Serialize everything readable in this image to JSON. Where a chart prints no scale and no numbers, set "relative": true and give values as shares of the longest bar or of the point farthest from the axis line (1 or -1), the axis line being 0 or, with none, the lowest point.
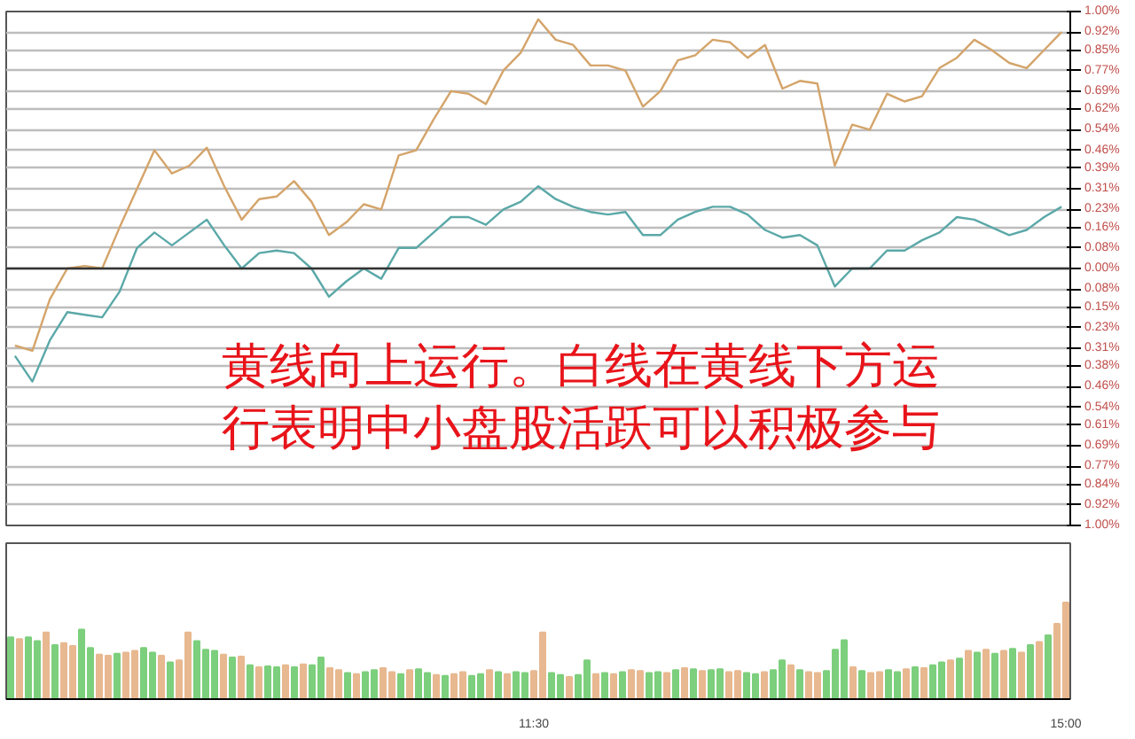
{
  "chart_data": [
    {
      "type": "line",
      "tick_labels": "y",
      "grid": "y",
      "ylim": [
        -1.0,
        1.0
      ],
      "categories": [
        null,
        null,
        null,
        null,
        null,
        null,
        null,
        null,
        null,
        null,
        null,
        null,
        null,
        null,
        null,
        null,
        null,
        null,
        null,
        null,
        null,
        null,
        null,
        null,
        null,
        null,
        null,
        null,
        null,
        null,
        null,
        null,
        null,
        null,
        null,
        null,
        null,
        null,
        null,
        null,
        null,
        null,
        null,
        null,
        null,
        null,
        null,
        null,
        null,
        null,
        null,
        null,
        null,
        null,
        null,
        null,
        null,
        null,
        null,
        null,
        null
      ],
      "yticks": [
        {
          "value": -1.0,
          "label": "1.00%"
        },
        {
          "value": -0.92,
          "label": "0.92%"
        },
        {
          "value": -0.84,
          "label": "0.84%"
        },
        {
          "value": -0.77,
          "label": "0.77%"
        },
        {
          "value": -0.69,
          "label": "0.69%"
        },
        {
          "value": -0.61,
          "label": "0.61%"
        },
        {
          "value": -0.54,
          "label": "0.54%"
        },
        {
          "value": -0.46,
          "label": "0.46%"
        },
        {
          "value": -0.38,
          "label": "0.38%"
        },
        {
          "value": -0.31,
          "label": "0.31%"
        },
        {
          "value": -0.23,
          "label": "0.23%"
        },
        {
          "value": -0.15,
          "label": "0.15%"
        },
        {
          "value": -0.08,
          "label": "0.08%"
        },
        {
          "value": 0,
          "label": "0.00%"
        },
        {
          "value": 0.08,
          "label": "0.08%"
        },
        {
          "value": 0.16,
          "label": "0.16%"
        },
        {
          "value": 0.23,
          "label": "0.23%"
        },
        {
          "value": 0.31,
          "label": "0.31%"
        },
        {
          "value": 0.39,
          "label": "0.39%"
        },
        {
          "value": 0.46,
          "label": "0.46%"
        },
        {
          "value": 0.54,
          "label": "0.54%"
        },
        {
          "value": 0.62,
          "label": "0.62%"
        },
        {
          "value": 0.69,
          "label": "0.69%"
        },
        {
          "value": 0.77,
          "label": "0.77%"
        },
        {
          "value": 0.85,
          "label": "0.85%"
        },
        {
          "value": 0.92,
          "label": "0.92%"
        },
        {
          "value": 1.0,
          "label": "1.00%"
        }
      ],
      "ref_lines": [
        {
          "axis": "y",
          "value": 0,
          "color": "#333333"
        }
      ],
      "series": [
        {
          "color": "#d4a46a",
          "values": [
            -0.3,
            -0.32,
            -0.12,
            0,
            0.01,
            0,
            0.16,
            0.31,
            0.46,
            0.37,
            0.4,
            0.47,
            0.32,
            0.19,
            0.27,
            0.28,
            0.34,
            0.26,
            0.13,
            0.18,
            0.25,
            0.23,
            0.44,
            0.46,
            0.58,
            0.69,
            0.68,
            0.64,
            0.77,
            0.84,
            0.97,
            0.89,
            0.87,
            0.79,
            0.79,
            0.77,
            0.63,
            0.69,
            0.81,
            0.83,
            0.89,
            0.88,
            0.82,
            0.87,
            0.7,
            0.73,
            0.72,
            0.4,
            0.56,
            0.54,
            0.68,
            0.65,
            0.67,
            0.78,
            0.82,
            0.89,
            0.85,
            0.8,
            0.78,
            0.85,
            0.92
          ]
        },
        {
          "color": "#5ba8a8",
          "values": [
            -0.34,
            -0.44,
            -0.28,
            -0.17,
            -0.18,
            -0.19,
            -0.09,
            0.08,
            0.14,
            0.09,
            0.14,
            0.19,
            0.09,
            0,
            0.06,
            0.07,
            0.06,
            0,
            -0.11,
            -0.05,
            0,
            -0.04,
            0.08,
            0.08,
            0.14,
            0.2,
            0.2,
            0.17,
            0.23,
            0.26,
            0.32,
            0.27,
            0.24,
            0.22,
            0.21,
            0.22,
            0.13,
            0.13,
            0.19,
            0.22,
            0.24,
            0.24,
            0.21,
            0.15,
            0.12,
            0.13,
            0.09,
            -0.07,
            0,
            0,
            0.07,
            0.07,
            0.11,
            0.14,
            0.2,
            0.19,
            0.16,
            0.13,
            0.15,
            0.2,
            0.24
          ]
        }
      ],
      "annotations": [
        "黄线向上运行。白线在黄线下方运",
        "行表明中小盘股活跃可以积极参与"
      ]
    },
    {
      "type": "bar",
      "relative": true,
      "categories": [
        null,
        null,
        null,
        null,
        null,
        null,
        null,
        null,
        null,
        null,
        null,
        null,
        null,
        null,
        null,
        null,
        null,
        null,
        null,
        null,
        null,
        null,
        null,
        null,
        null,
        null,
        null,
        null,
        null,
        null,
        null,
        null,
        null,
        null,
        null,
        null,
        null,
        null,
        null,
        null,
        null,
        null,
        null,
        null,
        null,
        null,
        null,
        null,
        null,
        null,
        null,
        null,
        null,
        null,
        null,
        null,
        null,
        null,
        null,
        "11:30",
        null,
        null,
        null,
        null,
        null,
        null,
        null,
        null,
        null,
        null,
        null,
        null,
        null,
        null,
        null,
        null,
        null,
        null,
        null,
        null,
        null,
        null,
        null,
        null,
        null,
        null,
        null,
        null,
        null,
        null,
        null,
        null,
        null,
        null,
        null,
        null,
        null,
        null,
        null,
        null,
        null,
        null,
        null,
        null,
        null,
        null,
        null,
        null,
        null,
        null,
        null,
        null,
        null,
        null,
        null,
        null,
        null,
        null,
        null,
        "15:00"
      ],
      "values": [
        0.64,
        0.62,
        0.64,
        0.6,
        0.69,
        0.56,
        0.58,
        0.55,
        0.72,
        0.53,
        0.46,
        0.45,
        0.47,
        0.48,
        0.5,
        0.53,
        0.48,
        0.45,
        0.38,
        0.4,
        0.69,
        0.6,
        0.51,
        0.5,
        0.46,
        0.43,
        0.44,
        0.35,
        0.33,
        0.34,
        0.33,
        0.35,
        0.33,
        0.36,
        0.35,
        0.43,
        0.32,
        0.3,
        0.27,
        0.26,
        0.28,
        0.3,
        0.32,
        0.28,
        0.26,
        0.3,
        0.31,
        0.27,
        0.25,
        0.24,
        0.26,
        0.28,
        0.24,
        0.26,
        0.3,
        0.28,
        0.26,
        0.28,
        0.27,
        0.29,
        0.69,
        0.27,
        0.25,
        0.23,
        0.25,
        0.4,
        0.26,
        0.27,
        0.26,
        0.28,
        0.3,
        0.29,
        0.27,
        0.28,
        0.27,
        0.3,
        0.32,
        0.31,
        0.29,
        0.3,
        0.31,
        0.28,
        0.29,
        0.27,
        0.26,
        0.28,
        0.3,
        0.4,
        0.35,
        0.3,
        0.28,
        0.27,
        0.29,
        0.51,
        0.61,
        0.33,
        0.29,
        0.27,
        0.28,
        0.3,
        0.28,
        0.31,
        0.33,
        0.32,
        0.35,
        0.38,
        0.4,
        0.42,
        0.5,
        0.48,
        0.51,
        0.47,
        0.5,
        0.52,
        0.48,
        0.56,
        0.59,
        0.66,
        0.78,
        1
      ],
      "colors": [
        "#7ccf7c",
        "#e8b890",
        "#7ccf7c",
        "#7ccf7c",
        "#e8b890",
        "#7ccf7c",
        "#e8b890",
        "#e8b890",
        "#7ccf7c",
        "#7ccf7c",
        "#e8b890",
        "#e8b890",
        "#7ccf7c",
        "#e8b890",
        "#e8b890",
        "#7ccf7c",
        "#7ccf7c",
        "#e8b890",
        "#7ccf7c",
        "#e8b890",
        "#e8b890",
        "#7ccf7c",
        "#7ccf7c",
        "#7ccf7c",
        "#e8b890",
        "#7ccf7c",
        "#e8b890",
        "#7ccf7c",
        "#e8b890",
        "#7ccf7c",
        "#7ccf7c",
        "#e8b890",
        "#7ccf7c",
        "#e8b890",
        "#7ccf7c",
        "#7ccf7c",
        "#e8b890",
        "#e8b890",
        "#7ccf7c",
        "#e8b890",
        "#7ccf7c",
        "#7ccf7c",
        "#e8b890",
        "#e8b890",
        "#7ccf7c",
        "#e8b890",
        "#7ccf7c",
        "#7ccf7c",
        "#e8b890",
        "#7ccf7c",
        "#e8b890",
        "#e8b890",
        "#7ccf7c",
        "#7ccf7c",
        "#e8b890",
        "#7ccf7c",
        "#e8b890",
        "#7ccf7c",
        "#7ccf7c",
        "#e8b890",
        "#e8b890",
        "#7ccf7c",
        "#7ccf7c",
        "#e8b890",
        "#7ccf7c",
        "#7ccf7c",
        "#e8b890",
        "#7ccf7c",
        "#e8b890",
        "#7ccf7c",
        "#e8b890",
        "#e8b890",
        "#7ccf7c",
        "#7ccf7c",
        "#e8b890",
        "#7ccf7c",
        "#e8b890",
        "#7ccf7c",
        "#e8b890",
        "#7ccf7c",
        "#7ccf7c",
        "#e8b890",
        "#e8b890",
        "#7ccf7c",
        "#7ccf7c",
        "#e8b890",
        "#7ccf7c",
        "#7ccf7c",
        "#e8b890",
        "#7ccf7c",
        "#e8b890",
        "#e8b890",
        "#7ccf7c",
        "#7ccf7c",
        "#7ccf7c",
        "#e8b890",
        "#7ccf7c",
        "#e8b890",
        "#e8b890",
        "#7ccf7c",
        "#7ccf7c",
        "#e8b890",
        "#7ccf7c",
        "#e8b890",
        "#7ccf7c",
        "#7ccf7c",
        "#e8b890",
        "#7ccf7c",
        "#e8b890",
        "#7ccf7c",
        "#e8b890",
        "#7ccf7c",
        "#e8b890",
        "#7ccf7c",
        "#e8b890",
        "#7ccf7c",
        "#e8b890",
        "#7ccf7c",
        "#e8b890",
        "#e8b890"
      ]
    }
  ]
}
